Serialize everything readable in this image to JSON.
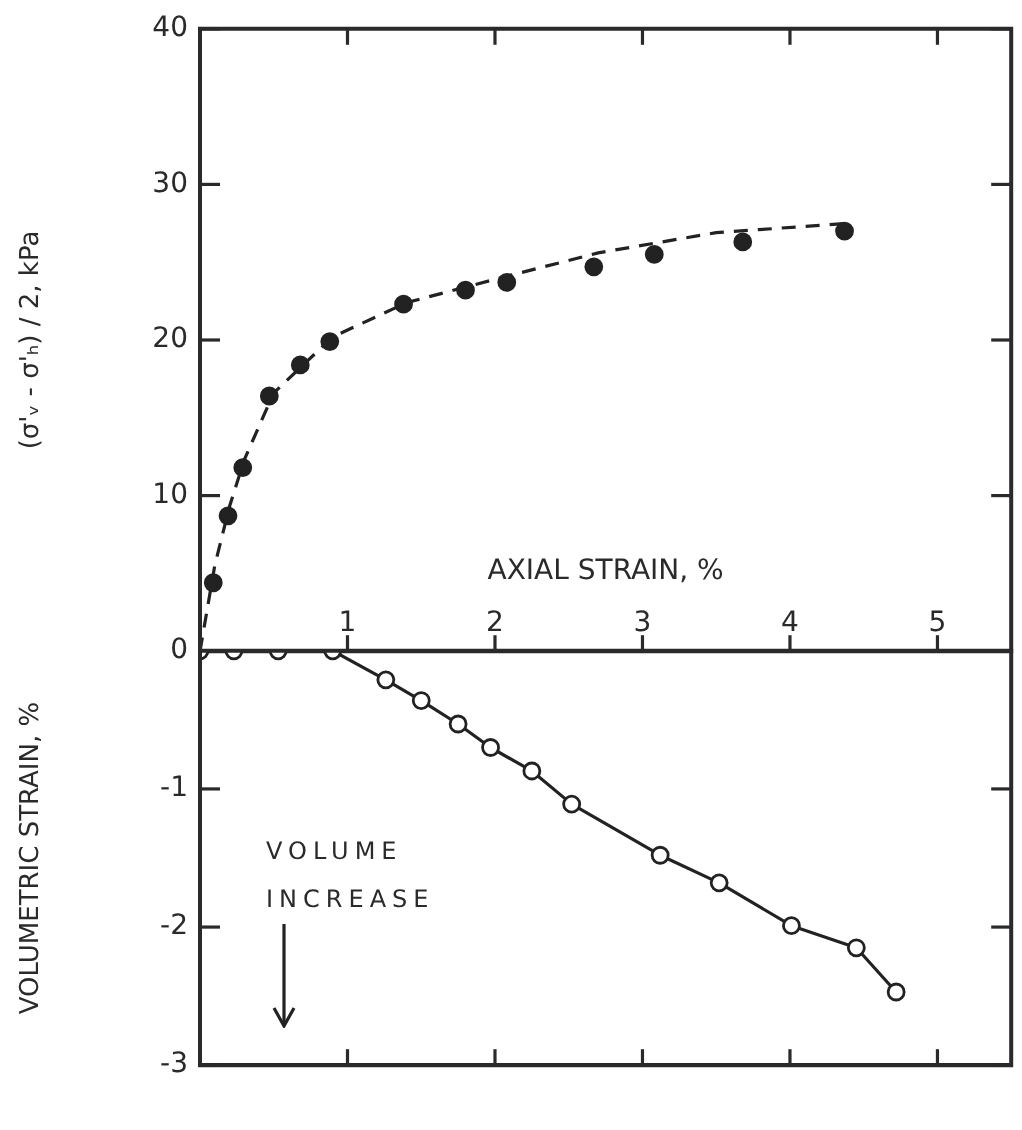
{
  "chart_data": [
    {
      "type": "scatter",
      "xlabel": "AXIAL STRAIN, %",
      "ylabel": "(σ'ᵥ - σ'ₕ) / 2, kPa",
      "xlim": [
        0,
        5.5
      ],
      "xticks": [
        1,
        2,
        3,
        4,
        5
      ],
      "ylim": [
        0,
        40
      ],
      "yticks": [
        0,
        10,
        20,
        30,
        40
      ],
      "grid": false,
      "legend": false,
      "series": [
        {
          "color": "#222222",
          "marker": "circle",
          "x": [
            0.09,
            0.19,
            0.29,
            0.47,
            0.68,
            0.88,
            1.38,
            1.8,
            2.08,
            2.67,
            3.08,
            3.68,
            4.37
          ],
          "values": [
            4.4,
            8.7,
            11.8,
            16.4,
            18.4,
            19.9,
            22.3,
            23.2,
            23.7,
            24.7,
            25.5,
            26.3,
            27.0
          ]
        },
        {
          "type": "line",
          "color": "#222222",
          "marker": "none",
          "line_style": "dashed",
          "x": [
            0,
            0.1,
            0.2,
            0.3,
            0.5,
            0.9,
            1.4,
            2,
            2.7,
            3.5,
            4.4
          ],
          "values": [
            0,
            5.5,
            9.3,
            12.3,
            16.6,
            20.2,
            22.4,
            23.9,
            25.6,
            26.9,
            27.5
          ]
        }
      ]
    },
    {
      "type": "line",
      "ylabel": "VOLUMETRIC STRAIN, %",
      "xlim": [
        0,
        5.5
      ],
      "xticks": [
        1,
        2,
        3,
        4,
        5
      ],
      "ylim": [
        -3,
        0
      ],
      "yticks": [
        -1,
        -2,
        -3
      ],
      "tick_labels": "y",
      "grid": false,
      "legend": false,
      "annotations": [
        "VOLUME INCREASE"
      ],
      "series": [
        {
          "color": "#222222",
          "marker": "circle",
          "line_style": "solid",
          "x": [
            0,
            0.23,
            0.53,
            0.9,
            1.26,
            1.5,
            1.75,
            1.97,
            2.25,
            2.52,
            3.12,
            3.52,
            4.01,
            4.45,
            4.72
          ],
          "values": [
            0,
            0,
            0,
            0,
            -0.21,
            -0.36,
            -0.53,
            -0.7,
            -0.87,
            -1.11,
            -1.48,
            -1.68,
            -1.99,
            -2.15,
            -2.47
          ]
        }
      ]
    }
  ]
}
